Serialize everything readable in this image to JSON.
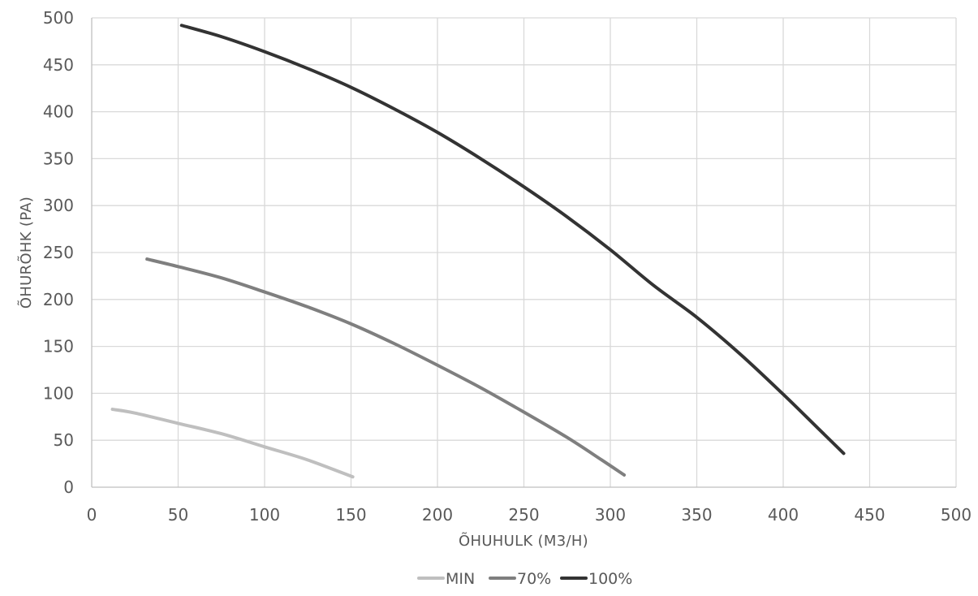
{
  "chart_data": {
    "type": "line",
    "xlabel": "ÕHUHULK (M3/H)",
    "ylabel": "ÕHURÕHK (PA)",
    "xlim": [
      0,
      500
    ],
    "ylim": [
      0,
      500
    ],
    "x_ticks": [
      0,
      50,
      100,
      150,
      200,
      250,
      300,
      350,
      400,
      450,
      500
    ],
    "y_ticks": [
      0,
      50,
      100,
      150,
      200,
      250,
      300,
      350,
      400,
      450,
      500
    ],
    "grid": true,
    "legend_position": "bottom",
    "series": [
      {
        "name": "MIN",
        "color": "#bfbfbf",
        "points": [
          [
            12,
            83
          ],
          [
            25,
            79
          ],
          [
            50,
            68
          ],
          [
            75,
            57
          ],
          [
            100,
            43
          ],
          [
            125,
            29
          ],
          [
            151,
            11
          ]
        ]
      },
      {
        "name": "70%",
        "color": "#7f7f7f",
        "points": [
          [
            32,
            243
          ],
          [
            50,
            235
          ],
          [
            75,
            223
          ],
          [
            100,
            208
          ],
          [
            125,
            192
          ],
          [
            150,
            174
          ],
          [
            175,
            153
          ],
          [
            200,
            130
          ],
          [
            225,
            106
          ],
          [
            250,
            80
          ],
          [
            275,
            53
          ],
          [
            295,
            29
          ],
          [
            308,
            13
          ]
        ]
      },
      {
        "name": "100%",
        "color": "#333333",
        "points": [
          [
            52,
            492
          ],
          [
            75,
            480
          ],
          [
            100,
            464
          ],
          [
            125,
            446
          ],
          [
            150,
            426
          ],
          [
            175,
            403
          ],
          [
            200,
            378
          ],
          [
            225,
            350
          ],
          [
            250,
            320
          ],
          [
            275,
            288
          ],
          [
            300,
            253
          ],
          [
            325,
            215
          ],
          [
            350,
            181
          ],
          [
            375,
            142
          ],
          [
            400,
            99
          ],
          [
            420,
            63
          ],
          [
            435,
            36
          ]
        ]
      }
    ]
  }
}
